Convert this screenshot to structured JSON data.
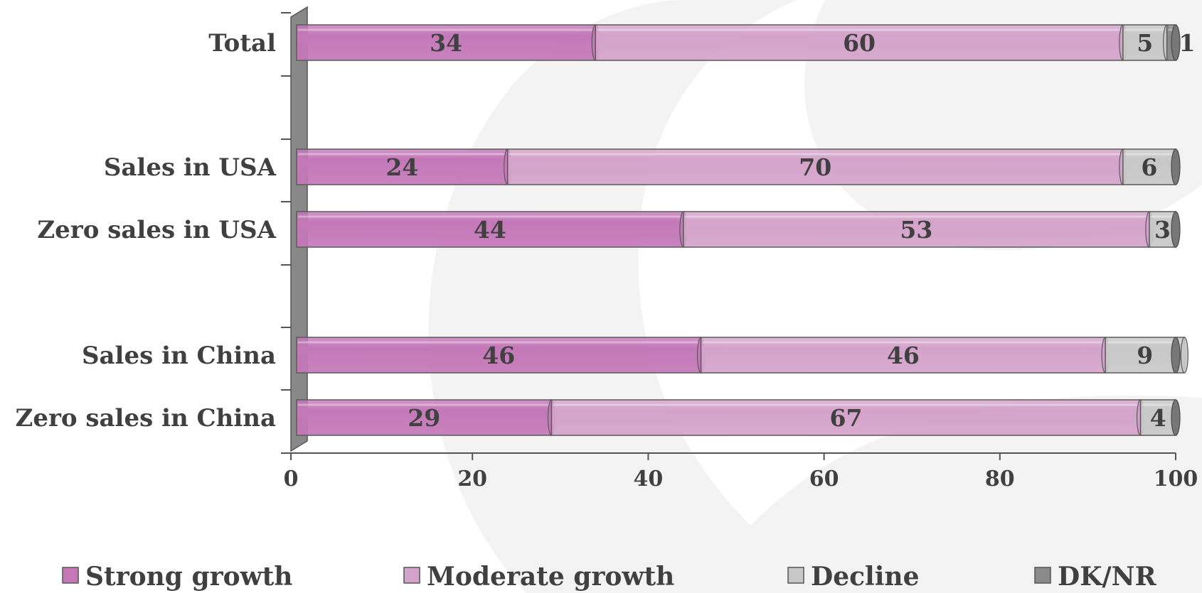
{
  "chart_data": {
    "type": "bar",
    "orientation": "horizontal",
    "stacked": true,
    "categories": [
      "Total",
      "Sales in USA",
      "Zero sales in USA",
      "Sales in China",
      "Zero sales in China"
    ],
    "series": [
      {
        "name": "Strong growth",
        "values": [
          34,
          24,
          44,
          46,
          29
        ],
        "color": "#c478b8"
      },
      {
        "name": "Moderate growth",
        "values": [
          60,
          70,
          53,
          46,
          67
        ],
        "color": "#d4a3cb"
      },
      {
        "name": "Decline",
        "values": [
          5,
          6,
          3,
          9,
          4
        ],
        "color": "#c8c8c8"
      },
      {
        "name": "DK/NR",
        "values": [
          1,
          0,
          0,
          0,
          0
        ],
        "color": "#8a8a8a"
      }
    ],
    "xlim": [
      0,
      100
    ],
    "xticks": [
      "0",
      "20",
      "40",
      "60",
      "80",
      "100"
    ],
    "legend_position": "bottom",
    "grid": false
  }
}
